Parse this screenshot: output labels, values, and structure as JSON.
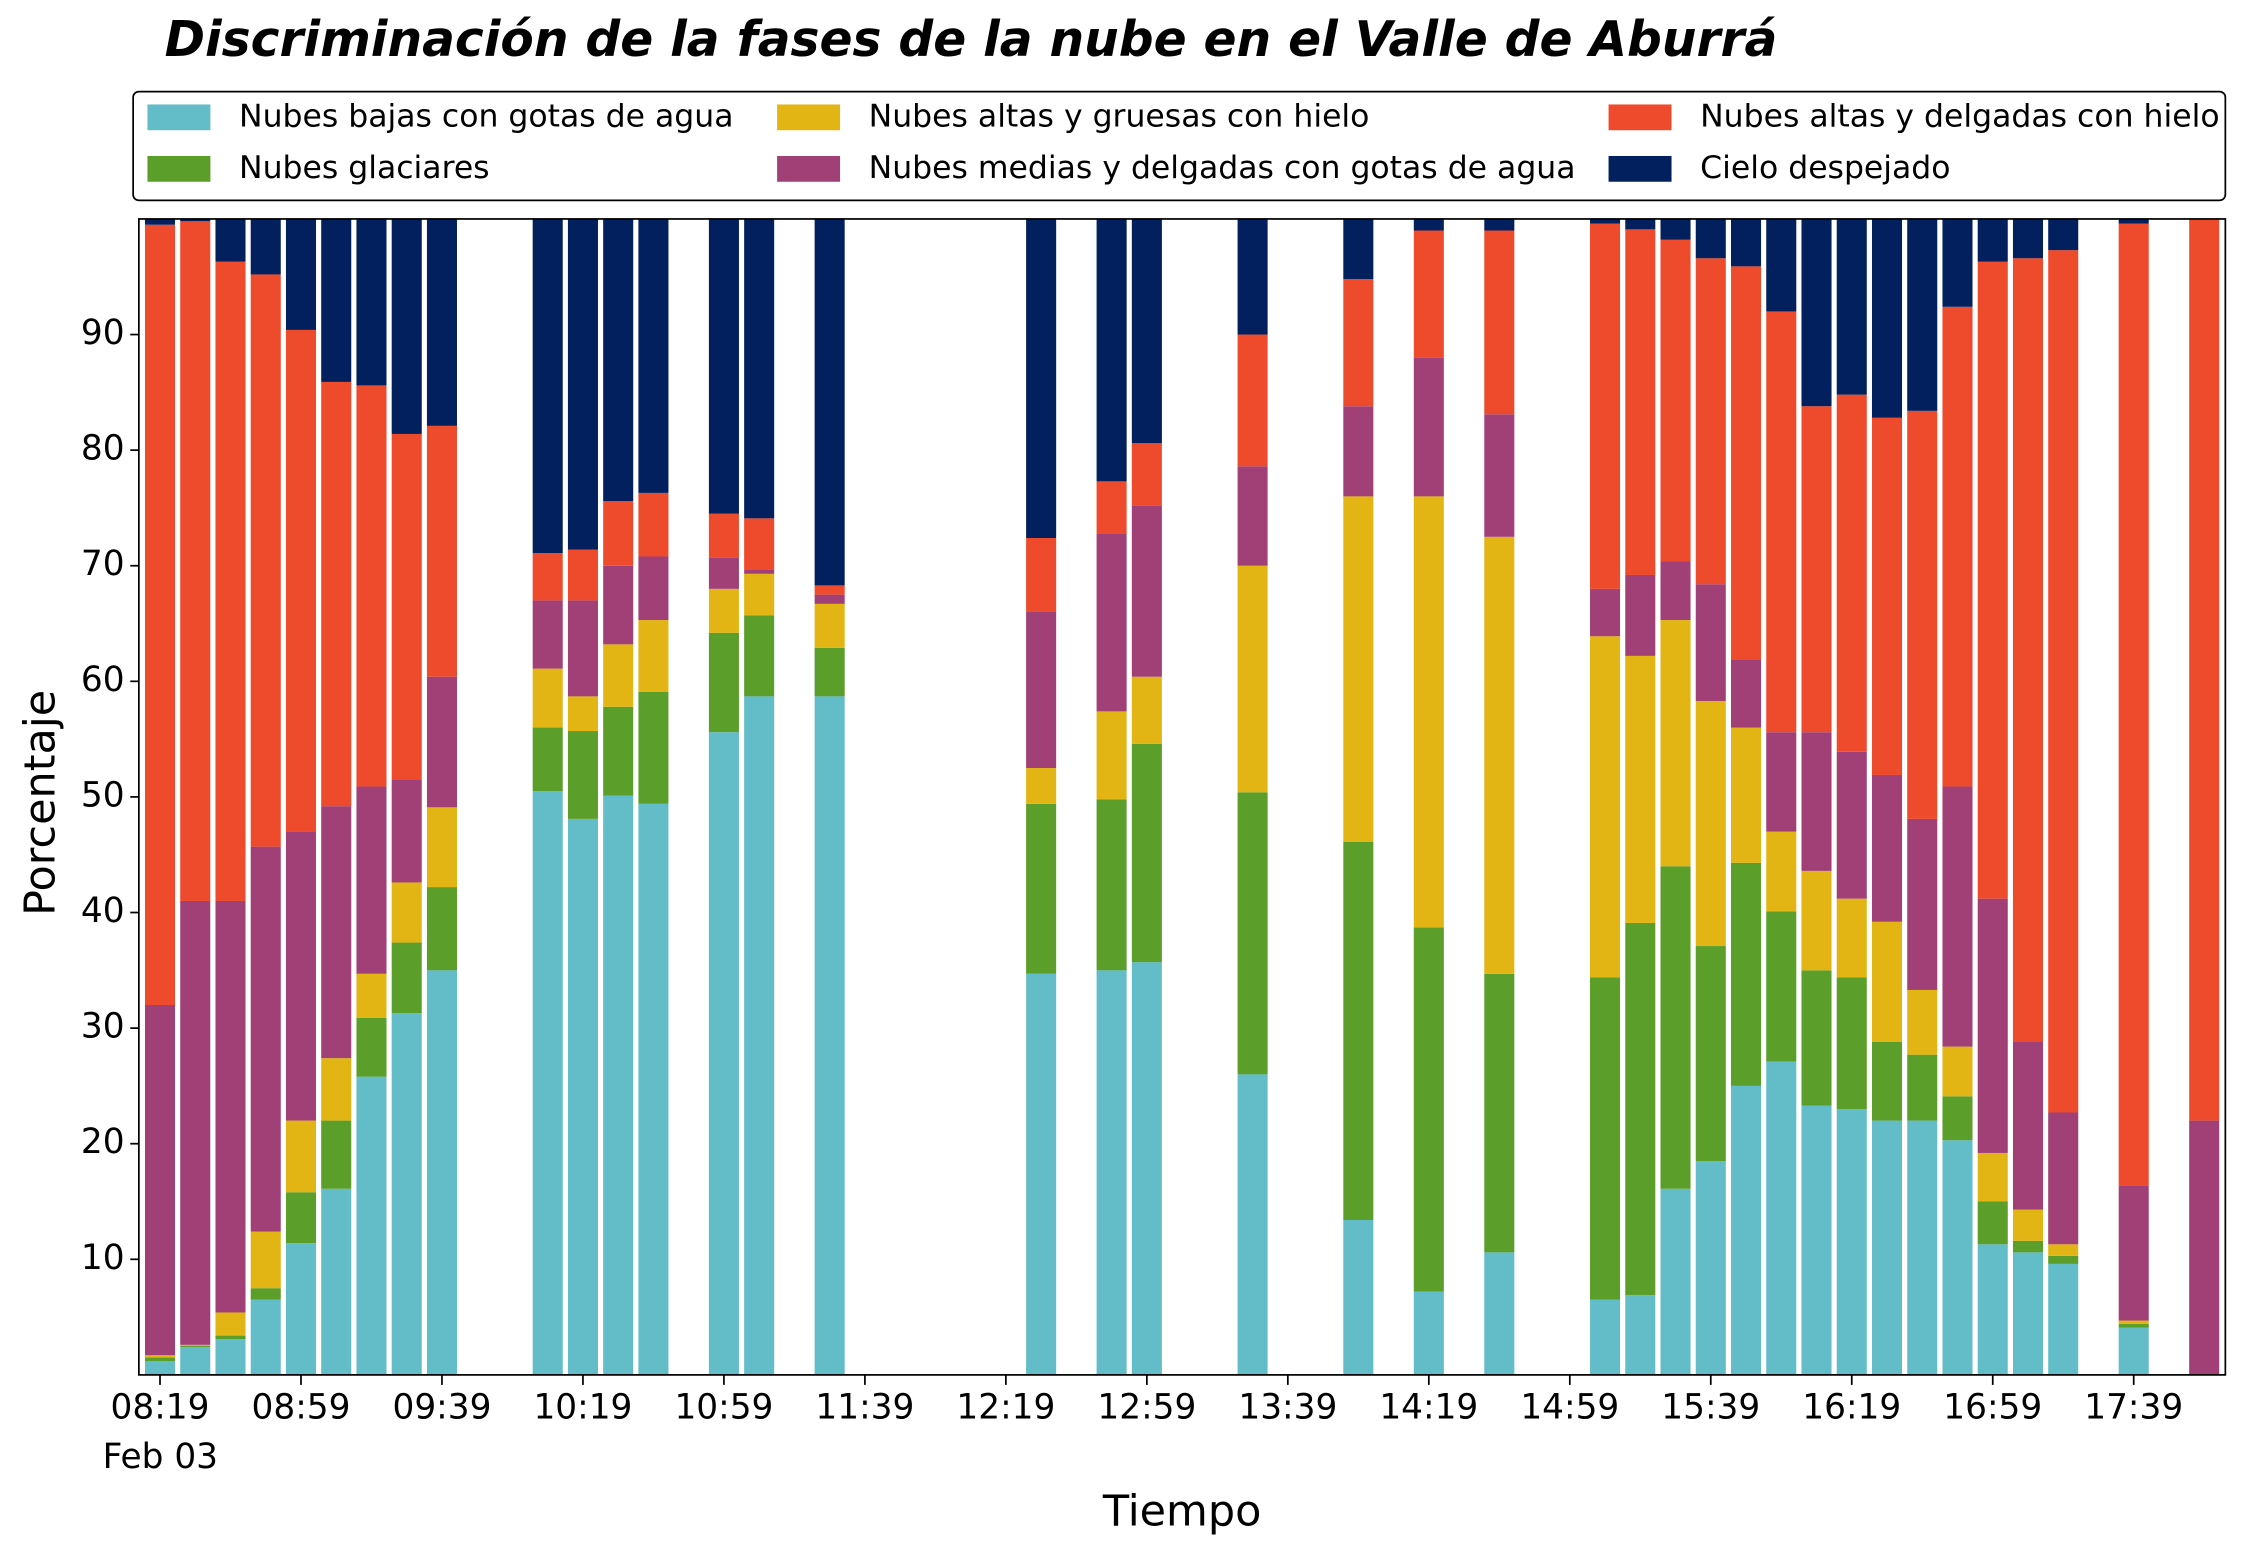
{
  "chart_data": {
    "type": "stacked_bar",
    "title": "Discriminación de la fases de la nube en el Valle de Aburrá",
    "xlabel": "Tiempo",
    "ylabel": "Porcentaje",
    "x_date_label": "Feb 03",
    "x": [
      "08:19",
      "08:29",
      "08:39",
      "08:49",
      "08:59",
      "09:09",
      "09:19",
      "09:29",
      "09:39",
      "10:09",
      "10:19",
      "10:29",
      "10:39",
      "10:59",
      "11:09",
      "11:29",
      "12:29",
      "12:49",
      "12:59",
      "13:29",
      "13:59",
      "14:19",
      "14:39",
      "15:09",
      "15:19",
      "15:29",
      "15:39",
      "15:49",
      "15:59",
      "16:09",
      "16:19",
      "16:29",
      "16:39",
      "16:49",
      "16:59",
      "17:09",
      "17:19",
      "17:39",
      "17:59"
    ],
    "xlim": [
      "08:13",
      "18:05"
    ],
    "xticks": [
      "08:19",
      "08:59",
      "09:39",
      "10:19",
      "10:59",
      "11:39",
      "12:19",
      "12:59",
      "13:39",
      "14:19",
      "14:59",
      "15:39",
      "16:19",
      "16:59",
      "17:39"
    ],
    "ylim": [
      0,
      100
    ],
    "yticks": [
      10,
      20,
      30,
      40,
      50,
      60,
      70,
      80,
      90
    ],
    "legend": "top",
    "series": [
      {
        "name": "Nubes bajas con gotas de agua",
        "color": "#63bdc8",
        "values": [
          1.2,
          2.4,
          3.1,
          6.5,
          11.4,
          16.1,
          25.8,
          31.3,
          35,
          50.5,
          48.1,
          50.1,
          49.4,
          55.6,
          58.7,
          58.7,
          34.7,
          35,
          35.7,
          26,
          13.4,
          7.2,
          10.6,
          6.5,
          6.9,
          16.1,
          18.5,
          25,
          27.1,
          23.3,
          23,
          22,
          22,
          20.3,
          11.3,
          10.6,
          9.6,
          4.1,
          0
        ]
      },
      {
        "name": "Nubes glaciares",
        "color": "#5c9e2a",
        "values": [
          0.3,
          0.1,
          0.3,
          1.0,
          4.4,
          5.9,
          5.1,
          6.1,
          7.2,
          5.5,
          7.6,
          7.7,
          9.7,
          8.6,
          7.0,
          4.2,
          14.7,
          14.8,
          18.9,
          24.4,
          32.7,
          31.5,
          24.1,
          27.9,
          32.2,
          27.9,
          18.6,
          19.3,
          13,
          11.7,
          11.4,
          6.8,
          5.7,
          3.8,
          3.7,
          1,
          0.7,
          0.3,
          0
        ]
      },
      {
        "name": "Nubes altas y gruesas con hielo",
        "color": "#e2b514",
        "values": [
          0.2,
          0.1,
          2.0,
          4.9,
          6.2,
          5.4,
          3.8,
          5.2,
          6.9,
          5.1,
          3.0,
          5.4,
          6.2,
          3.8,
          3.6,
          3.8,
          3.1,
          7.6,
          5.8,
          19.6,
          29.9,
          37.3,
          37.8,
          29.5,
          23.1,
          21.3,
          21.2,
          11.7,
          6.9,
          8.6,
          6.8,
          10.4,
          5.6,
          4.3,
          4.2,
          2.7,
          1,
          0.3,
          0
        ]
      },
      {
        "name": "Nubes medias y delgadas con gotas de agua",
        "color": "#a04076",
        "values": [
          30.3,
          38.4,
          35.6,
          33.3,
          25.0,
          21.8,
          16.2,
          8.9,
          11.3,
          5.9,
          8.3,
          6.8,
          5.5,
          2.7,
          0.4,
          0.8,
          13.5,
          15.4,
          14.8,
          8.6,
          7.8,
          12,
          10.6,
          4.1,
          7,
          5.1,
          10.1,
          5.9,
          8.6,
          12,
          12.7,
          12.7,
          14.8,
          22.5,
          22,
          14.5,
          11.4,
          11.7,
          22
        ]
      },
      {
        "name": "Nubes altas y delgadas con hielo",
        "color": "#ee4a2c",
        "values": [
          67.5,
          58.8,
          55.3,
          49.5,
          43.4,
          36.7,
          34.7,
          29.9,
          21.7,
          4.1,
          4.4,
          5.6,
          5.5,
          3.8,
          4.4,
          0.8,
          6.4,
          4.5,
          5.4,
          11.4,
          11,
          11,
          15.9,
          31.6,
          29.9,
          27.8,
          28.2,
          34,
          36.4,
          28.2,
          30.9,
          30.9,
          35.3,
          41.5,
          55.1,
          67.8,
          74.6,
          83.2,
          78
        ]
      },
      {
        "name": "Cielo despejado",
        "color": "#03205e",
        "values": [
          0.5,
          0.2,
          3.7,
          4.8,
          9.6,
          14.1,
          14.4,
          18.6,
          17.9,
          28.9,
          28.6,
          24.4,
          23.7,
          25.5,
          25.9,
          31.7,
          27.6,
          22.7,
          19.4,
          10,
          5.2,
          1.0,
          1.0,
          0.4,
          0.9,
          1.8,
          3.4,
          4.1,
          8,
          16.2,
          15.2,
          17.2,
          16.6,
          7.6,
          3.7,
          3.4,
          2.7,
          0.4,
          0
        ]
      }
    ]
  }
}
